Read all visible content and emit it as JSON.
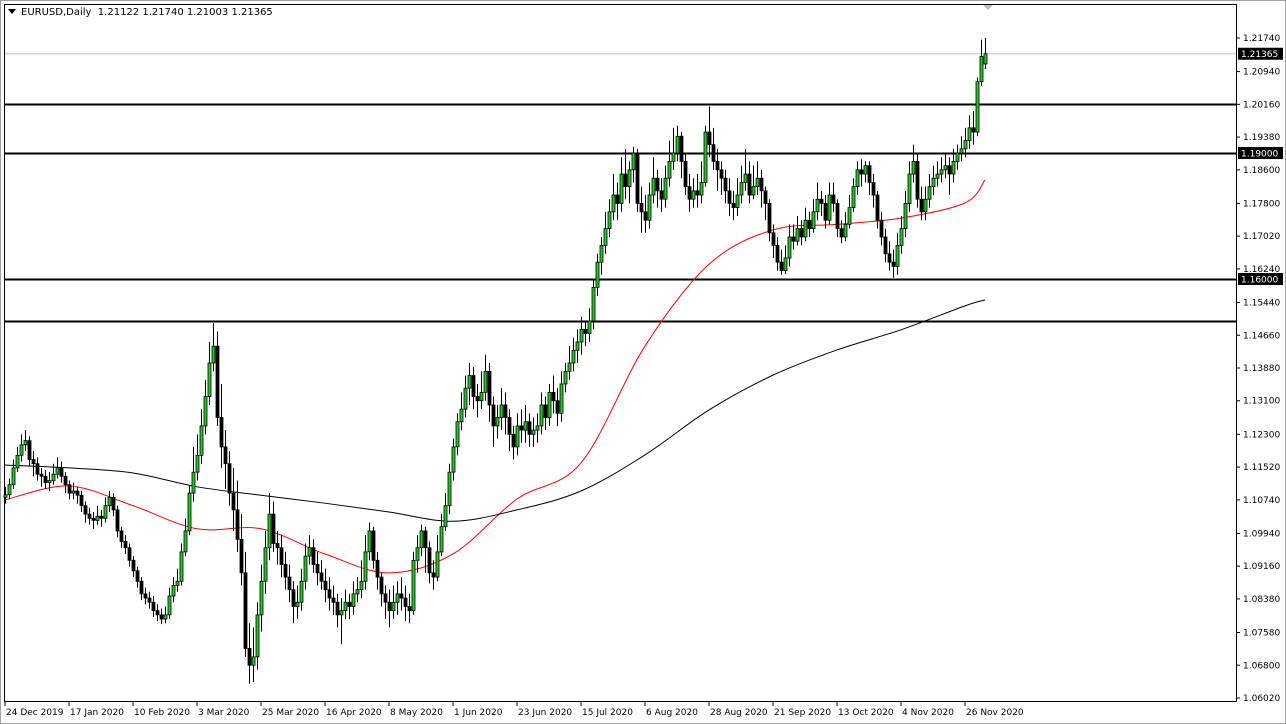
{
  "header": {
    "symbol_timeframe": "EURUSD,Daily",
    "open": "1.21122",
    "high": "1.21740",
    "low": "1.21003",
    "close": "1.21365"
  },
  "colors": {
    "bull": "#22cc22",
    "bear": "#000000",
    "ma_fast": "#ff0000",
    "ma_slow": "#000000",
    "current_price_line": "#c0c0c0",
    "level_line": "#000000"
  },
  "chart_data": {
    "type": "candlestick",
    "title": "EURUSD,Daily",
    "ylim": [
      1.0602,
      1.2174
    ],
    "grid": false,
    "y_ticks": [
      "1.21740",
      "1.20940",
      "1.20160",
      "1.19380",
      "1.18600",
      "1.17800",
      "1.17020",
      "1.16240",
      "1.15440",
      "1.14660",
      "1.13880",
      "1.13100",
      "1.12300",
      "1.11520",
      "1.10740",
      "1.09940",
      "1.09160",
      "1.08380",
      "1.07580",
      "1.06800",
      "1.06020"
    ],
    "x_ticks": [
      "24 Dec 2019",
      "17 Jan 2020",
      "10 Feb 2020",
      "3 Mar 2020",
      "25 Mar 2020",
      "16 Apr 2020",
      "8 May 2020",
      "1 Jun 2020",
      "23 Jun 2020",
      "15 Jul 2020",
      "6 Aug 2020",
      "28 Aug 2020",
      "21 Sep 2020",
      "13 Oct 2020",
      "4 Nov 2020",
      "26 Nov 2020"
    ],
    "current_price": {
      "value": 1.21365,
      "label": "1.21365"
    },
    "horizontal_levels": [
      {
        "value": 1.2016,
        "label": ""
      },
      {
        "value": 1.19,
        "label": "1.19000"
      },
      {
        "value": 1.16,
        "label": "1.16000"
      },
      {
        "value": 1.15,
        "label": ""
      }
    ],
    "close": [
      1.1086,
      1.111,
      1.115,
      1.118,
      1.1205,
      1.1215,
      1.117,
      1.116,
      1.1135,
      1.113,
      1.1115,
      1.112,
      1.1135,
      1.115,
      1.113,
      1.111,
      1.109,
      1.1095,
      1.1085,
      1.106,
      1.104,
      1.103,
      1.1025,
      1.1035,
      1.103,
      1.106,
      1.108,
      1.105,
      1.1,
      1.0975,
      1.096,
      1.093,
      1.0905,
      1.088,
      1.085,
      1.084,
      1.083,
      1.081,
      1.08,
      1.079,
      1.08,
      1.0845,
      1.087,
      1.088,
      1.095,
      1.1,
      1.109,
      1.114,
      1.118,
      1.125,
      1.132,
      1.14,
      1.144,
      1.127,
      1.12,
      1.116,
      1.109,
      1.105,
      1.098,
      1.09,
      1.072,
      1.068,
      1.07,
      1.08,
      1.088,
      1.096,
      1.104,
      1.097,
      1.096,
      1.092,
      1.089,
      1.086,
      1.082,
      1.083,
      1.088,
      1.094,
      1.096,
      1.092,
      1.09,
      1.088,
      1.086,
      1.084,
      1.083,
      1.08,
      1.081,
      1.083,
      1.082,
      1.085,
      1.086,
      1.088,
      1.095,
      1.1,
      1.093,
      1.089,
      1.085,
      1.083,
      1.081,
      1.083,
      1.085,
      1.084,
      1.082,
      1.081,
      1.093,
      1.096,
      1.1,
      1.096,
      1.09,
      1.089,
      1.095,
      1.101,
      1.106,
      1.114,
      1.12,
      1.126,
      1.129,
      1.134,
      1.137,
      1.132,
      1.131,
      1.133,
      1.138,
      1.13,
      1.125,
      1.127,
      1.13,
      1.127,
      1.123,
      1.12,
      1.125,
      1.124,
      1.126,
      1.123,
      1.124,
      1.125,
      1.13,
      1.127,
      1.133,
      1.131,
      1.128,
      1.135,
      1.138,
      1.14,
      1.143,
      1.145,
      1.148,
      1.147,
      1.15,
      1.158,
      1.164,
      1.168,
      1.172,
      1.176,
      1.18,
      1.178,
      1.185,
      1.182,
      1.186,
      1.19,
      1.178,
      1.176,
      1.174,
      1.18,
      1.184,
      1.181,
      1.179,
      1.184,
      1.188,
      1.19,
      1.194,
      1.188,
      1.182,
      1.179,
      1.181,
      1.18,
      1.183,
      1.195,
      1.192,
      1.188,
      1.186,
      1.184,
      1.181,
      1.178,
      1.177,
      1.18,
      1.183,
      1.185,
      1.18,
      1.182,
      1.184,
      1.181,
      1.178,
      1.171,
      1.168,
      1.164,
      1.162,
      1.165,
      1.17,
      1.169,
      1.172,
      1.17,
      1.174,
      1.172,
      1.176,
      1.179,
      1.178,
      1.174,
      1.18,
      1.178,
      1.172,
      1.17,
      1.173,
      1.177,
      1.182,
      1.186,
      1.185,
      1.187,
      1.183,
      1.18,
      1.174,
      1.17,
      1.166,
      1.164,
      1.163,
      1.168,
      1.172,
      1.178,
      1.185,
      1.188,
      1.179,
      1.176,
      1.179,
      1.182,
      1.184,
      1.185,
      1.186,
      1.187,
      1.185,
      1.188,
      1.19,
      1.191,
      1.193,
      1.196,
      1.195,
      1.207,
      1.213,
      1.21365
    ],
    "open": [
      1.108,
      1.1086,
      1.111,
      1.115,
      1.118,
      1.1205,
      1.1215,
      1.117,
      1.116,
      1.1135,
      1.113,
      1.1115,
      1.112,
      1.1135,
      1.115,
      1.113,
      1.111,
      1.109,
      1.1095,
      1.1085,
      1.106,
      1.104,
      1.103,
      1.1025,
      1.1035,
      1.103,
      1.106,
      1.108,
      1.105,
      1.1,
      1.0975,
      1.096,
      1.093,
      1.0905,
      1.088,
      1.085,
      1.084,
      1.083,
      1.081,
      1.08,
      1.079,
      1.08,
      1.0845,
      1.087,
      1.088,
      1.095,
      1.1,
      1.109,
      1.114,
      1.118,
      1.125,
      1.132,
      1.14,
      1.144,
      1.127,
      1.12,
      1.116,
      1.109,
      1.105,
      1.098,
      1.09,
      1.072,
      1.068,
      1.07,
      1.08,
      1.088,
      1.096,
      1.104,
      1.097,
      1.096,
      1.092,
      1.089,
      1.086,
      1.082,
      1.083,
      1.088,
      1.094,
      1.096,
      1.092,
      1.09,
      1.088,
      1.086,
      1.084,
      1.083,
      1.08,
      1.081,
      1.083,
      1.082,
      1.085,
      1.086,
      1.088,
      1.095,
      1.1,
      1.093,
      1.089,
      1.085,
      1.083,
      1.081,
      1.083,
      1.085,
      1.084,
      1.082,
      1.081,
      1.093,
      1.096,
      1.1,
      1.096,
      1.09,
      1.089,
      1.095,
      1.101,
      1.106,
      1.114,
      1.12,
      1.126,
      1.129,
      1.134,
      1.137,
      1.132,
      1.131,
      1.133,
      1.138,
      1.13,
      1.125,
      1.127,
      1.13,
      1.127,
      1.123,
      1.12,
      1.125,
      1.124,
      1.126,
      1.123,
      1.124,
      1.125,
      1.13,
      1.127,
      1.133,
      1.131,
      1.128,
      1.135,
      1.138,
      1.14,
      1.143,
      1.145,
      1.148,
      1.147,
      1.15,
      1.158,
      1.164,
      1.168,
      1.172,
      1.176,
      1.18,
      1.178,
      1.185,
      1.182,
      1.186,
      1.19,
      1.178,
      1.176,
      1.174,
      1.18,
      1.184,
      1.181,
      1.179,
      1.184,
      1.188,
      1.19,
      1.194,
      1.188,
      1.182,
      1.179,
      1.181,
      1.18,
      1.183,
      1.195,
      1.192,
      1.188,
      1.186,
      1.184,
      1.181,
      1.178,
      1.177,
      1.18,
      1.183,
      1.185,
      1.18,
      1.182,
      1.184,
      1.181,
      1.178,
      1.171,
      1.168,
      1.164,
      1.162,
      1.165,
      1.17,
      1.169,
      1.172,
      1.17,
      1.174,
      1.172,
      1.176,
      1.179,
      1.178,
      1.174,
      1.18,
      1.178,
      1.172,
      1.17,
      1.173,
      1.177,
      1.182,
      1.186,
      1.185,
      1.187,
      1.183,
      1.18,
      1.174,
      1.17,
      1.166,
      1.164,
      1.163,
      1.168,
      1.172,
      1.178,
      1.185,
      1.188,
      1.179,
      1.176,
      1.179,
      1.182,
      1.184,
      1.185,
      1.186,
      1.187,
      1.185,
      1.188,
      1.19,
      1.191,
      1.193,
      1.196,
      1.195,
      1.207,
      1.21122
    ],
    "high": [
      1.1105,
      1.1125,
      1.117,
      1.12,
      1.123,
      1.124,
      1.1225,
      1.119,
      1.1175,
      1.115,
      1.1145,
      1.114,
      1.116,
      1.1175,
      1.1165,
      1.114,
      1.112,
      1.1115,
      1.1105,
      1.1095,
      1.107,
      1.1055,
      1.1045,
      1.106,
      1.105,
      1.108,
      1.1095,
      1.109,
      1.106,
      1.101,
      1.099,
      1.097,
      1.094,
      1.0915,
      1.089,
      1.0865,
      1.0855,
      1.0845,
      1.0825,
      1.0815,
      1.082,
      1.0865,
      1.089,
      1.091,
      1.097,
      1.103,
      1.111,
      1.12,
      1.123,
      1.129,
      1.136,
      1.145,
      1.1495,
      1.1475,
      1.135,
      1.124,
      1.119,
      1.115,
      1.112,
      1.104,
      1.095,
      1.078,
      1.077,
      1.083,
      1.092,
      1.1,
      1.109,
      1.107,
      1.1,
      1.099,
      1.095,
      1.092,
      1.088,
      1.087,
      1.091,
      1.097,
      1.099,
      1.098,
      1.095,
      1.093,
      1.091,
      1.089,
      1.087,
      1.085,
      1.084,
      1.086,
      1.085,
      1.088,
      1.089,
      1.093,
      1.099,
      1.102,
      1.101,
      1.095,
      1.09,
      1.087,
      1.086,
      1.087,
      1.088,
      1.089,
      1.087,
      1.085,
      1.095,
      1.099,
      1.1015,
      1.101,
      1.0975,
      1.093,
      1.099,
      1.104,
      1.109,
      1.116,
      1.122,
      1.128,
      1.133,
      1.137,
      1.14,
      1.139,
      1.135,
      1.138,
      1.142,
      1.14,
      1.132,
      1.13,
      1.134,
      1.133,
      1.129,
      1.125,
      1.128,
      1.129,
      1.13,
      1.128,
      1.127,
      1.128,
      1.133,
      1.132,
      1.135,
      1.137,
      1.134,
      1.138,
      1.14,
      1.144,
      1.146,
      1.148,
      1.151,
      1.15,
      1.153,
      1.16,
      1.166,
      1.17,
      1.176,
      1.179,
      1.185,
      1.183,
      1.189,
      1.191,
      1.188,
      1.1915,
      1.191,
      1.182,
      1.18,
      1.183,
      1.189,
      1.186,
      1.184,
      1.187,
      1.193,
      1.196,
      1.1965,
      1.195,
      1.19,
      1.185,
      1.184,
      1.185,
      1.188,
      1.1965,
      1.2011,
      1.196,
      1.191,
      1.188,
      1.186,
      1.184,
      1.181,
      1.184,
      1.187,
      1.191,
      1.188,
      1.187,
      1.188,
      1.186,
      1.182,
      1.179,
      1.173,
      1.17,
      1.167,
      1.168,
      1.173,
      1.173,
      1.175,
      1.174,
      1.177,
      1.176,
      1.179,
      1.183,
      1.181,
      1.18,
      1.183,
      1.183,
      1.179,
      1.174,
      1.176,
      1.18,
      1.184,
      1.188,
      1.1885,
      1.188,
      1.188,
      1.185,
      1.181,
      1.176,
      1.172,
      1.169,
      1.167,
      1.171,
      1.175,
      1.181,
      1.188,
      1.192,
      1.19,
      1.182,
      1.182,
      1.185,
      1.187,
      1.188,
      1.189,
      1.19,
      1.189,
      1.191,
      1.192,
      1.194,
      1.196,
      1.199,
      1.2,
      1.208,
      1.217,
      1.2174
    ],
    "low": [
      1.1065,
      1.1075,
      1.11,
      1.114,
      1.1165,
      1.119,
      1.1155,
      1.113,
      1.112,
      1.1105,
      1.11,
      1.1095,
      1.111,
      1.1125,
      1.1115,
      1.109,
      1.1075,
      1.1075,
      1.1065,
      1.1045,
      1.102,
      1.1015,
      1.1005,
      1.1015,
      1.101,
      1.102,
      1.1045,
      1.1035,
      1.0985,
      1.096,
      1.0945,
      1.0915,
      1.089,
      1.0865,
      1.0835,
      1.0825,
      1.0815,
      1.0795,
      1.0785,
      1.0778,
      1.078,
      1.079,
      1.083,
      1.0855,
      1.087,
      1.094,
      1.099,
      1.107,
      1.112,
      1.116,
      1.123,
      1.13,
      1.138,
      1.125,
      1.115,
      1.11,
      1.106,
      1.1,
      1.095,
      1.087,
      1.07,
      1.0636,
      1.064,
      1.067,
      1.076,
      1.085,
      1.093,
      1.095,
      1.092,
      1.089,
      1.086,
      1.083,
      1.078,
      1.079,
      1.081,
      1.086,
      1.092,
      1.09,
      1.087,
      1.086,
      1.083,
      1.081,
      1.08,
      1.077,
      1.073,
      1.079,
      1.079,
      1.08,
      1.083,
      1.084,
      1.086,
      1.093,
      1.091,
      1.086,
      1.082,
      1.079,
      1.077,
      1.079,
      1.08,
      1.081,
      1.0785,
      1.078,
      1.08,
      1.09,
      1.094,
      1.09,
      1.0875,
      1.086,
      1.088,
      1.094,
      1.1,
      1.104,
      1.112,
      1.118,
      1.124,
      1.127,
      1.13,
      1.129,
      1.127,
      1.129,
      1.131,
      1.126,
      1.12,
      1.122,
      1.124,
      1.123,
      1.119,
      1.117,
      1.118,
      1.121,
      1.121,
      1.12,
      1.12,
      1.121,
      1.123,
      1.124,
      1.125,
      1.128,
      1.125,
      1.126,
      1.133,
      1.136,
      1.138,
      1.14,
      1.142,
      1.144,
      1.145,
      1.148,
      1.156,
      1.161,
      1.166,
      1.17,
      1.174,
      1.174,
      1.176,
      1.179,
      1.178,
      1.183,
      1.176,
      1.171,
      1.171,
      1.172,
      1.178,
      1.177,
      1.176,
      1.177,
      1.182,
      1.186,
      1.188,
      1.184,
      1.18,
      1.176,
      1.177,
      1.177,
      1.178,
      1.182,
      1.189,
      1.186,
      1.181,
      1.18,
      1.178,
      1.175,
      1.174,
      1.175,
      1.178,
      1.181,
      1.178,
      1.179,
      1.18,
      1.177,
      1.174,
      1.169,
      1.165,
      1.162,
      1.161,
      1.1612,
      1.163,
      1.167,
      1.168,
      1.168,
      1.169,
      1.17,
      1.171,
      1.174,
      1.175,
      1.172,
      1.173,
      1.176,
      1.17,
      1.1685,
      1.169,
      1.172,
      1.176,
      1.18,
      1.182,
      1.183,
      1.18,
      1.177,
      1.172,
      1.168,
      1.164,
      1.162,
      1.1603,
      1.161,
      1.166,
      1.17,
      1.176,
      1.183,
      1.177,
      1.174,
      1.174,
      1.177,
      1.18,
      1.182,
      1.183,
      1.184,
      1.18,
      1.183,
      1.186,
      1.188,
      1.189,
      1.191,
      1.192,
      1.194,
      1.206,
      1.21003
    ],
    "moving_averages": [
      {
        "color": "#ff0000",
        "values_at_x_ticks": [
          1.1074,
          1.1107,
          1.106,
          1.1005,
          1.1005,
          1.0945,
          1.09,
          1.0945,
          1.1076,
          1.1162,
          1.144,
          1.1635,
          1.1717,
          1.173,
          1.1745,
          1.1781
        ],
        "last_value": 1.1836
      },
      {
        "color": "#000000",
        "values_at_x_ticks": [
          1.1157,
          1.115,
          1.1138,
          1.1105,
          1.1085,
          1.1066,
          1.1045,
          1.1023,
          1.105,
          1.1095,
          1.1181,
          1.1288,
          1.1371,
          1.1431,
          1.1479,
          1.1536
        ],
        "last_value": 1.155
      }
    ]
  }
}
